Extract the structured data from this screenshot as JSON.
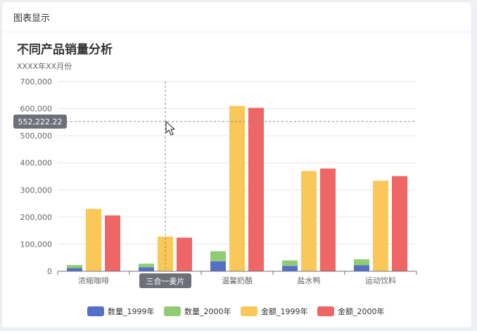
{
  "panel": {
    "title": "图表显示"
  },
  "chart_data": {
    "type": "bar",
    "title": "不同产品销量分析",
    "subtitle": "XXXX年XX月份",
    "categories": [
      "浓缩咖啡",
      "三合一麦片",
      "温馨奶酪",
      "盐水鸭",
      "运动饮料"
    ],
    "stacked_group": [
      "数量_1999年",
      "数量_2000年"
    ],
    "series": [
      {
        "name": "数量_1999年",
        "color": "#5470c6",
        "values": [
          12000,
          15000,
          37000,
          20000,
          22000
        ]
      },
      {
        "name": "数量_2000年",
        "color": "#91cc75",
        "values": [
          11000,
          13000,
          37000,
          20000,
          22000
        ]
      },
      {
        "name": "金额_1999年",
        "color": "#fac858",
        "values": [
          230000,
          128000,
          610000,
          370000,
          334000
        ]
      },
      {
        "name": "金额_2000年",
        "color": "#ee6666",
        "values": [
          206000,
          124000,
          603000,
          379000,
          351000
        ]
      }
    ],
    "ylim": [
      0,
      700000
    ],
    "yticks": [
      0,
      100000,
      200000,
      300000,
      400000,
      500000,
      600000,
      700000
    ],
    "ytick_labels": [
      "0",
      "100,000",
      "200,000",
      "300,000",
      "400,000",
      "500,000",
      "600,000",
      "700,000"
    ],
    "grid": true,
    "legend_position": "bottom",
    "pointer": {
      "y_value": 552222.22,
      "y_label": "552,222.22",
      "category_index": 1,
      "category_label": "三合一麦片"
    }
  }
}
